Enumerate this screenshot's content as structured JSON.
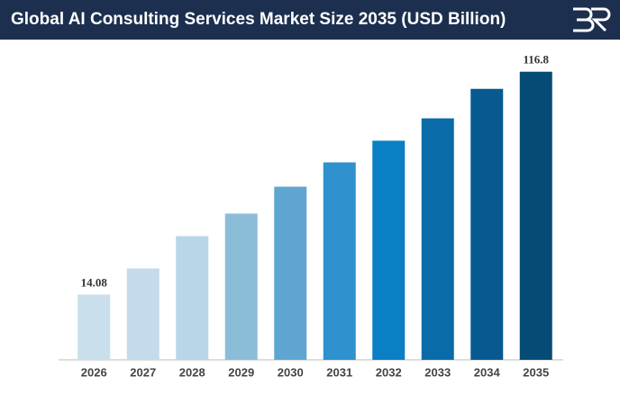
{
  "chart_data": {
    "type": "bar",
    "title": "Global AI Consulting Services Market Size 2035 (USD Billion)",
    "categories": [
      "2026",
      "2027",
      "2028",
      "2029",
      "2030",
      "2031",
      "2032",
      "2033",
      "2034",
      "2035"
    ],
    "values": [
      14.08,
      26.1,
      41.0,
      51.4,
      63.8,
      75.0,
      85.0,
      95.3,
      108.9,
      116.8
    ],
    "value_labels": [
      "14.08",
      null,
      null,
      null,
      null,
      null,
      null,
      null,
      null,
      "116.8"
    ],
    "colors": [
      "#c9dfeb",
      "#c3dbea",
      "#b8d6e8",
      "#8bbdd9",
      "#5fa5d2",
      "#2f91cd",
      "#0b7fc4",
      "#0a6ba9",
      "#075a90",
      "#054b76"
    ],
    "ylim": [
      -16,
      120
    ]
  }
}
